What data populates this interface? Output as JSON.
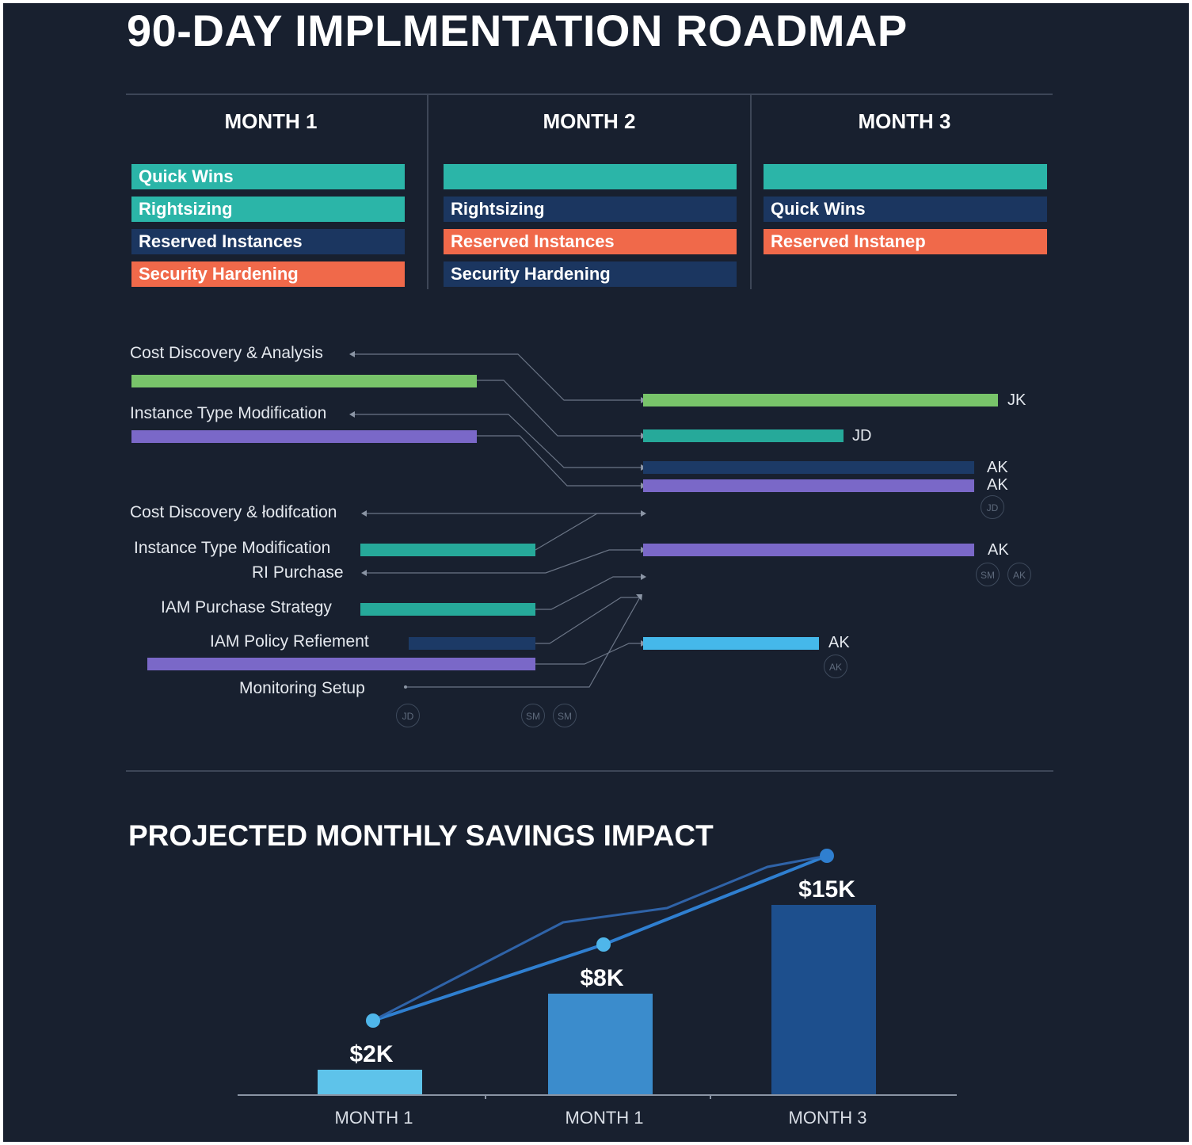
{
  "title": "90-DAY IMPLMENTATION ROADMAP",
  "months": [
    {
      "header": "MONTH 1",
      "bars": [
        {
          "label": "Quick Wins",
          "color": "#2bb5a8"
        },
        {
          "label": "Rightsizing",
          "color": "#2bb5a8"
        },
        {
          "label": "Reserved Instances",
          "color": "#1b3660"
        },
        {
          "label": "Security Hardening",
          "color": "#f0694a"
        }
      ]
    },
    {
      "header": "MONTH 2",
      "bars": [
        {
          "label": "",
          "color": "#2bb5a8"
        },
        {
          "label": "Rightsizing",
          "color": "#1b3660"
        },
        {
          "label": "Reserved Instances",
          "color": "#f0694a"
        },
        {
          "label": "Security Hardening",
          "color": "#1b3660"
        }
      ]
    },
    {
      "header": "MONTH 3",
      "bars": [
        {
          "label": "",
          "color": "#2bb5a8"
        },
        {
          "label": "Quick Wins",
          "color": "#1b3660"
        },
        {
          "label": "Reserved Instanep",
          "color": "#f0694a"
        }
      ]
    }
  ],
  "gantt": {
    "left_labels": [
      "Cost Discovery & Analysis",
      "Instance Type Modification",
      "Cost Discovery & łodifcation",
      "Instance Type Modification",
      "RI Purchase",
      "IAM Purchase Strategy",
      "IAM Policy Refiement",
      "Monitoring Setup"
    ],
    "right_tags": [
      "JK",
      "JD",
      "AK",
      "AK",
      "AK",
      "AK"
    ],
    "avatars": [
      "JD",
      "SM",
      "AK",
      "AK",
      "JD",
      "SM",
      "SM"
    ]
  },
  "savings": {
    "title": "PROJECTED MONTHLY SAVINGS IMPACT"
  },
  "chart_data": {
    "type": "bar",
    "title": "PROJECTED MONTHLY SAVINGS IMPACT",
    "categories": [
      "MONTH 1",
      "MONTH 1",
      "MONTH 3"
    ],
    "values": [
      2,
      8,
      15
    ],
    "value_labels": [
      "$2K",
      "$8K",
      "$15K"
    ],
    "unit": "$K",
    "ylim": [
      0,
      20
    ],
    "colors": [
      "#5ec3ea",
      "#3b8ccc",
      "#1d4f8d"
    ],
    "trend_line": true
  }
}
